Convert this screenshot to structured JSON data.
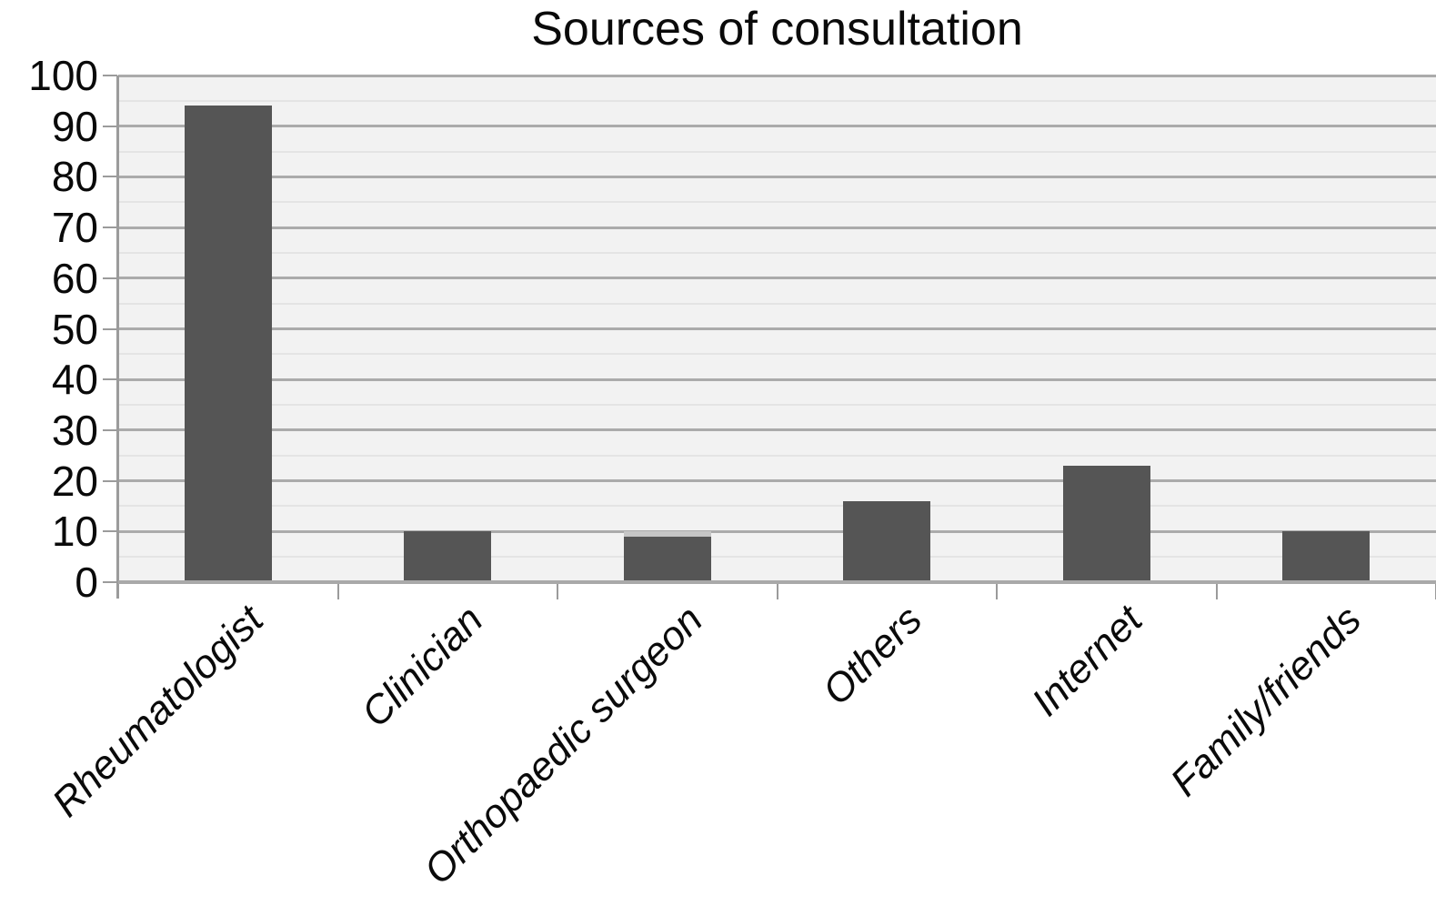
{
  "chart_data": {
    "type": "bar",
    "title": "Sources of consultation",
    "categories": [
      "Rheumatologist",
      "Clinician",
      "Orthopaedic surgeon",
      "Others",
      "Internet",
      "Family/friends"
    ],
    "values": [
      94,
      10,
      9,
      16,
      23,
      10
    ],
    "bar_caps": {
      "Orthopaedic surgeon": 10
    },
    "xlabel": "",
    "ylabel": "",
    "ylim": [
      0,
      100
    ],
    "ytick_step": 10,
    "minor_ytick_step": 5,
    "ytick_labels": [
      "0",
      "10",
      "20",
      "30",
      "40",
      "50",
      "60",
      "70",
      "80",
      "90",
      "100"
    ],
    "grid": "horizontal",
    "legend": "none",
    "colors": {
      "bar": "#555555",
      "bar_cap": "#c6c6c6",
      "plot_background": "#f2f2f2",
      "major_gridline": "#ababab",
      "minor_gridline": "#e4e4e4",
      "axis": "#9b9b9b",
      "text": "#0a0a0a"
    }
  }
}
